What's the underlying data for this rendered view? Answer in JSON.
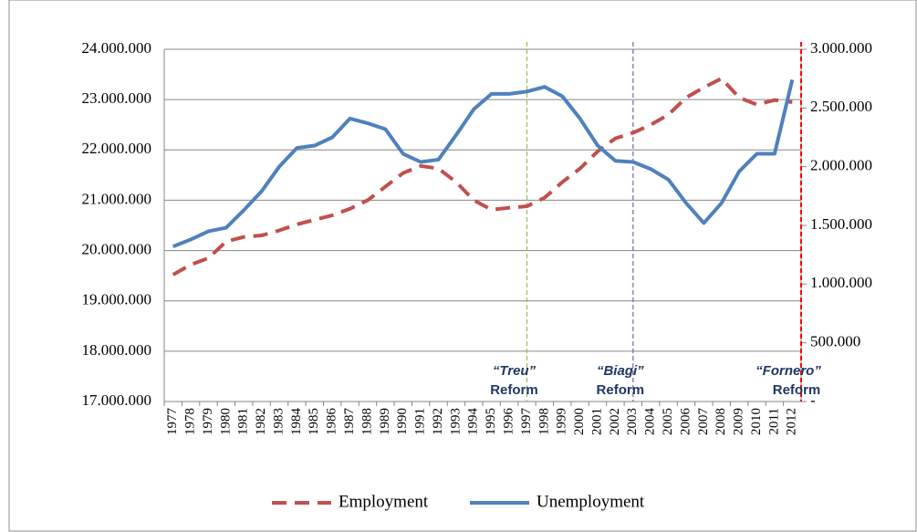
{
  "chart_data": {
    "type": "line",
    "categories": [
      "1977",
      "1978",
      "1979",
      "1980",
      "1981",
      "1982",
      "1983",
      "1984",
      "1985",
      "1986",
      "1987",
      "1988",
      "1989",
      "1990",
      "1991",
      "1992",
      "1993",
      "1994",
      "1995",
      "1996",
      "1997",
      "1998",
      "1999",
      "2000",
      "2001",
      "2002",
      "2003",
      "2004",
      "2005",
      "2006",
      "2007",
      "2008",
      "2009",
      "2010",
      "2011",
      "2012"
    ],
    "series": [
      {
        "name": "Employment",
        "color": "#c0504d",
        "dash": true,
        "axis": "y",
        "values": [
          19520000,
          19720000,
          19850000,
          20180000,
          20270000,
          20300000,
          20400000,
          20520000,
          20610000,
          20700000,
          20830000,
          21000000,
          21270000,
          21540000,
          21680000,
          21630000,
          21360000,
          21000000,
          20810000,
          20850000,
          20880000,
          21050000,
          21360000,
          21630000,
          21970000,
          22230000,
          22340000,
          22500000,
          22700000,
          23040000,
          23240000,
          23420000,
          23040000,
          22900000,
          22990000,
          22950000
        ]
      },
      {
        "name": "Unemployment",
        "color": "#4f81bd",
        "dash": false,
        "axis": "y2",
        "values": [
          1320000,
          1380000,
          1450000,
          1480000,
          1630000,
          1790000,
          2000000,
          2160000,
          2180000,
          2250000,
          2410000,
          2370000,
          2320000,
          2110000,
          2040000,
          2060000,
          2270000,
          2490000,
          2620000,
          2620000,
          2640000,
          2680000,
          2600000,
          2410000,
          2180000,
          2050000,
          2040000,
          1980000,
          1890000,
          1690000,
          1520000,
          1690000,
          1960000,
          2110000,
          2110000,
          2740000
        ]
      }
    ],
    "ylim": [
      17000000,
      24000000
    ],
    "yticks": [
      {
        "value": 17000000,
        "label": "17.000.000"
      },
      {
        "value": 18000000,
        "label": "18.000.000"
      },
      {
        "value": 19000000,
        "label": "19.000.000"
      },
      {
        "value": 20000000,
        "label": "20.000.000"
      },
      {
        "value": 21000000,
        "label": "21.000.000"
      },
      {
        "value": 22000000,
        "label": "22.000.000"
      },
      {
        "value": 23000000,
        "label": "23.000.000"
      },
      {
        "value": 24000000,
        "label": "24.000.000"
      }
    ],
    "y2lim": [
      0,
      3000000
    ],
    "y2ticks": [
      {
        "value": 0,
        "label": "-"
      },
      {
        "value": 500000,
        "label": "500.000"
      },
      {
        "value": 1000000,
        "label": "1.000.000"
      },
      {
        "value": 1500000,
        "label": "1.500.000"
      },
      {
        "value": 2000000,
        "label": "2.000.000"
      },
      {
        "value": 2500000,
        "label": "2.500.000"
      },
      {
        "value": 3000000,
        "label": "3.000.000"
      }
    ],
    "grid": true,
    "legend": "bottom",
    "annotations": [
      {
        "name": "“Treu”",
        "text": "Reform",
        "x": "1997",
        "color": "#9bbb59"
      },
      {
        "name": "“Biagi”",
        "text": "Reform",
        "x": "2003",
        "color": "#8064a2"
      },
      {
        "name": "“Fornero”",
        "text": "Reform",
        "x": "2012",
        "color": "#ff0000"
      }
    ]
  }
}
